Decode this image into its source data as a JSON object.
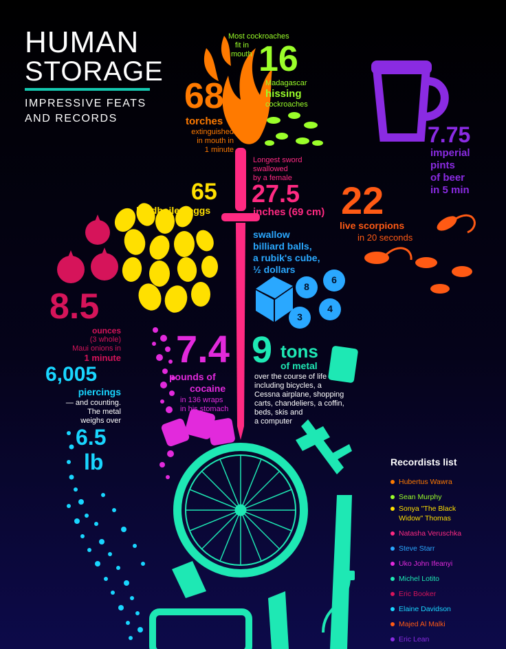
{
  "header": {
    "title_line1": "HUMAN",
    "title_line2": "STORAGE",
    "subtitle_line1": "IMPRESSIVE FEATS",
    "subtitle_line2": "AND RECORDS",
    "rule_color": "#14c8b0"
  },
  "records": {
    "torches": {
      "number": "68",
      "label": "torches",
      "desc_line1": "extinguished",
      "desc_line2": "in mouth in",
      "desc_line3": "1 minute",
      "color": "#ff7a00"
    },
    "cockroaches": {
      "intro_line1": "Most cockroaches",
      "intro_line2": "fit in",
      "intro_line3": "mouth",
      "number": "16",
      "label_line1": "Madagascar",
      "label_line2": "hissing",
      "desc": "cockroaches",
      "color": "#9bff2a"
    },
    "beer": {
      "number": "7.75",
      "label_line1": "imperial",
      "label_line2": "pints",
      "label_line3": "of beer",
      "label_line4": "in 5 min",
      "color": "#8a2be2"
    },
    "sword": {
      "intro_line1": "Longest sword",
      "intro_line2": "swallowed",
      "intro_line3": "by a female",
      "number": "27.5",
      "label": "inches (69 cm)",
      "color": "#ff2a82"
    },
    "eggs": {
      "number": "65",
      "label": "hardboiled eggs",
      "color": "#ffe000"
    },
    "scorpions": {
      "number": "22",
      "label_line1": "live scorpions",
      "label_line2": "in 20 seconds",
      "color": "#ff5a14"
    },
    "billiard": {
      "line1": "swallow",
      "line2": "billiard balls,",
      "line3": "a rubik's cube,",
      "line4": "½ dollars",
      "color": "#2aa8ff"
    },
    "onions": {
      "number": "8.5",
      "label": "ounces",
      "desc_line1": "(3 whole)",
      "desc_line2": "Maui onions in",
      "desc_line3": "1 minute",
      "color": "#d6145a"
    },
    "cocaine": {
      "number": "7.4",
      "label": "pounds of",
      "label_line2": "cocaine",
      "desc_line1": "in 136 wraps",
      "desc_line2": "in his stomach",
      "color": "#e22adc"
    },
    "metal": {
      "number": "9",
      "label": "tons",
      "label_line2": "of metal",
      "desc_line1": "over the course of life",
      "desc_line2": "including bicycles, a",
      "desc_line3": "Cessna airplane, shopping",
      "desc_line4": "carts, chandeliers, a coffin,",
      "desc_line5": "beds, skis and",
      "desc_line6": "a computer",
      "color": "#1ee8b4"
    },
    "piercings": {
      "number": "6,005",
      "label": "piercings",
      "desc_line1": "— and counting.",
      "desc_line2": "The metal",
      "desc_line3": "weighs over",
      "weight": "6.5",
      "unit": "lb",
      "color": "#19d6ff"
    }
  },
  "billiard_balls": [
    "8",
    "6",
    "3",
    "4"
  ],
  "recordists": {
    "title": "Recordists list",
    "items": [
      {
        "name": "Hubertus Wawra",
        "color": "#ff7a00"
      },
      {
        "name": "Sean Murphy",
        "color": "#9bff2a"
      },
      {
        "name": "Sonya \"The Black",
        "name2": "Widow\" Thomas",
        "color": "#ffe000"
      },
      {
        "name": "Natasha Veruschka",
        "color": "#ff2a82"
      },
      {
        "name": "Steve Starr",
        "color": "#2aa8ff"
      },
      {
        "name": "Uko John Ifeanyi",
        "color": "#e22adc"
      },
      {
        "name": "Michel Lotito",
        "color": "#1ee8b4"
      },
      {
        "name": "Eric Booker",
        "color": "#d6145a"
      },
      {
        "name": "Elaine Davidson",
        "color": "#19d6ff"
      },
      {
        "name": "Majed Al Malki",
        "color": "#ff5a14"
      },
      {
        "name": "Eric Lean",
        "color": "#8a2be2"
      }
    ]
  }
}
